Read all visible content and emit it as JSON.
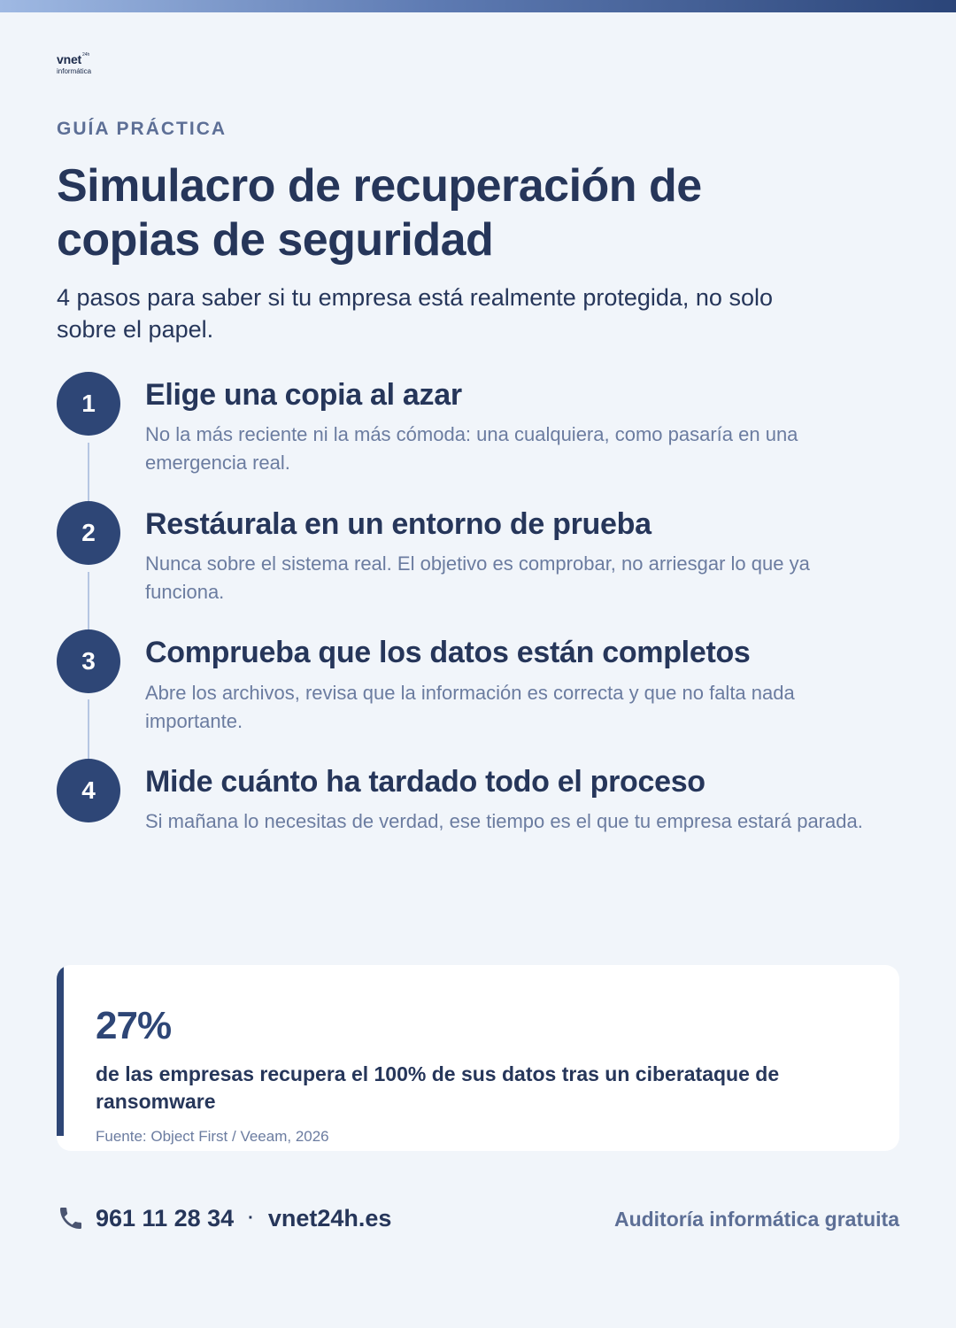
{
  "brand": {
    "logo_main": "vnet",
    "logo_sup": "24h",
    "logo_sub": "informática"
  },
  "eyebrow": "GUÍA PRÁCTICA",
  "title": "Simulacro de recuperación de copias de seguridad",
  "subtitle": "4 pasos para saber si tu empresa está realmente protegida, no solo sobre el papel.",
  "steps": [
    {
      "number": "1",
      "title": "Elige una copia al azar",
      "description": "No la más reciente ni la más cómoda: una cualquiera, como pasaría en una emergencia real."
    },
    {
      "number": "2",
      "title": "Restáurala en un entorno de prueba",
      "description": "Nunca sobre el sistema real. El objetivo es comprobar, no arriesgar lo que ya funciona."
    },
    {
      "number": "3",
      "title": "Comprueba que los datos están completos",
      "description": "Abre los archivos, revisa que la información es correcta y que no falta nada importante."
    },
    {
      "number": "4",
      "title": "Mide cuánto ha tardado todo el proceso",
      "description": "Si mañana lo necesitas de verdad, ese tiempo es el que tu empresa estará parada."
    }
  ],
  "stat": {
    "value": "27%",
    "text": "de las empresas recupera el 100% de sus datos tras un ciberataque de ransomware",
    "source": "Fuente: Object First / Veeam, 2026"
  },
  "footer": {
    "phone": "961 11 28 34",
    "separator": "·",
    "website": "vnet24h.es",
    "cta": "Auditoría informática gratuita"
  },
  "colors": {
    "primary": "#2e4676",
    "text": "#26365a",
    "muted": "#6b7ca0",
    "background": "#f1f5fa"
  }
}
